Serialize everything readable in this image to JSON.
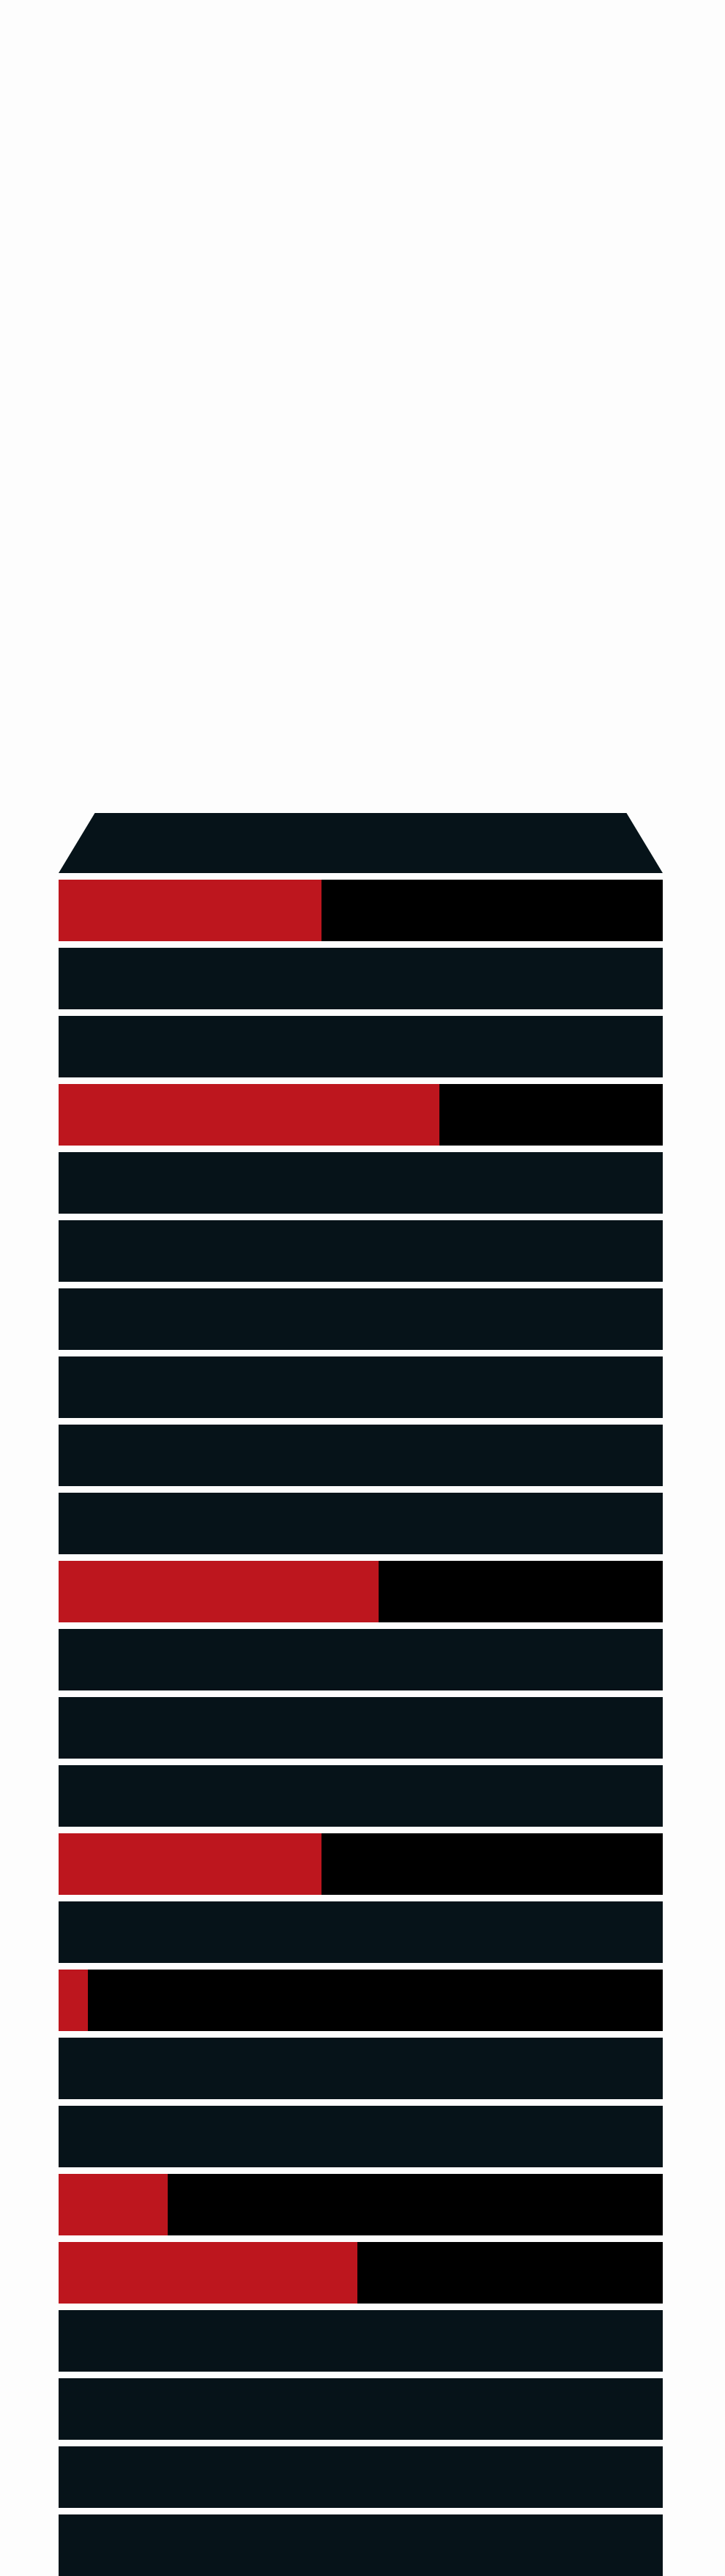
{
  "colors": {
    "background": "#fdfdfd",
    "dark_row": "#061319",
    "track": "#000000",
    "accent_fill": "#bd161e",
    "gap": "#f2f2f2"
  },
  "tower": {
    "rows": [
      {
        "level": 0.435
      },
      {
        "level": null
      },
      {
        "level": null
      },
      {
        "level": 0.63
      },
      {
        "level": null
      },
      {
        "level": null
      },
      {
        "level": null
      },
      {
        "level": null
      },
      {
        "level": null
      },
      {
        "level": null
      },
      {
        "level": 0.53
      },
      {
        "level": null
      },
      {
        "level": null
      },
      {
        "level": null
      },
      {
        "level": 0.435
      },
      {
        "level": null
      },
      {
        "level": 0.048
      },
      {
        "level": null
      },
      {
        "level": null
      },
      {
        "level": 0.18
      },
      {
        "level": 0.495
      },
      {
        "level": null
      },
      {
        "level": null
      },
      {
        "level": null
      },
      {
        "level": null
      }
    ]
  }
}
